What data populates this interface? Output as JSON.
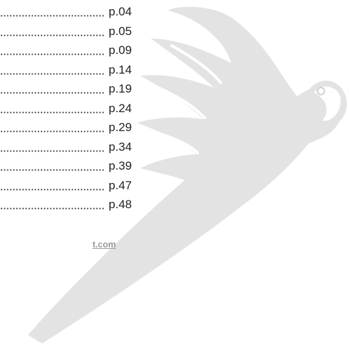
{
  "toc": {
    "entries": [
      {
        "page": "p.04"
      },
      {
        "page": "p.05"
      },
      {
        "page": "p.09"
      },
      {
        "page": "p.14"
      },
      {
        "page": "p.19"
      },
      {
        "page": "p.24"
      },
      {
        "page": "p.29"
      },
      {
        "page": "p.34"
      },
      {
        "page": "p.39"
      },
      {
        "page": "p.47"
      },
      {
        "page": "p.48"
      }
    ]
  },
  "footer": {
    "link": "t.com"
  }
}
